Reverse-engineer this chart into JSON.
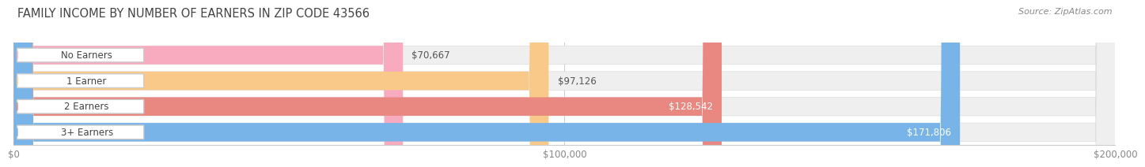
{
  "title": "FAMILY INCOME BY NUMBER OF EARNERS IN ZIP CODE 43566",
  "source": "Source: ZipAtlas.com",
  "categories": [
    "No Earners",
    "1 Earner",
    "2 Earners",
    "3+ Earners"
  ],
  "values": [
    70667,
    97126,
    128542,
    171806
  ],
  "bar_colors": [
    "#f8aabf",
    "#f9c98a",
    "#e88880",
    "#79b4e8"
  ],
  "value_labels": [
    "$70,667",
    "$97,126",
    "$128,542",
    "$171,806"
  ],
  "value_inside": [
    false,
    false,
    true,
    true
  ],
  "xlim": [
    0,
    200000
  ],
  "xticks": [
    0,
    100000,
    200000
  ],
  "xtick_labels": [
    "$0",
    "$100,000",
    "$200,000"
  ],
  "page_bg": "#f5f5f5",
  "bar_bg": "#e8e8e8",
  "bar_bg_white": "#f0f0f0",
  "title_fontsize": 10.5,
  "source_fontsize": 8,
  "bar_label_fontsize": 8.5,
  "value_label_fontsize": 8.5,
  "tick_fontsize": 8.5,
  "bar_height": 0.72,
  "bar_gap": 0.28
}
